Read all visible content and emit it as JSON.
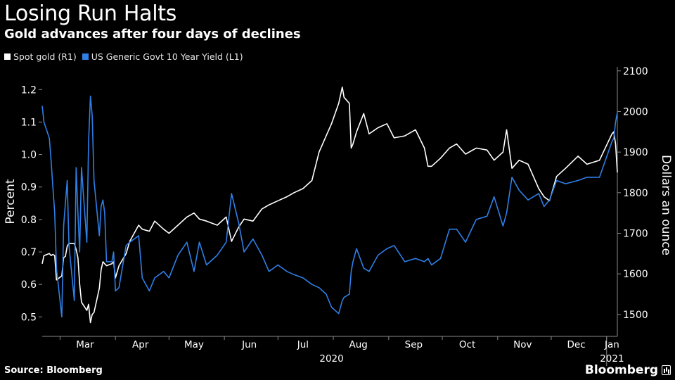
{
  "header": {
    "title": "Losing Run Halts",
    "subtitle": "Gold advances after four days of declines"
  },
  "footer": {
    "source": "Source: Bloomberg",
    "brand": "Bloomberg"
  },
  "colors": {
    "gold": "#ffffff",
    "yield": "#2f7fe6",
    "background": "#000000",
    "axis": "#8a8a8a"
  },
  "chart_data": {
    "type": "line",
    "title": "Losing Run Halts",
    "subtitle": "Gold advances after four days of declines",
    "legend_position": "top-left",
    "grid": false,
    "x_range": [
      "2020-02-20",
      "2021-01-07"
    ],
    "x_month_labels": [
      {
        "label": "Mar",
        "date": "2020-03-15"
      },
      {
        "label": "Apr",
        "date": "2020-04-15"
      },
      {
        "label": "May",
        "date": "2020-05-15"
      },
      {
        "label": "Jun",
        "date": "2020-06-15"
      },
      {
        "label": "Jul",
        "date": "2020-07-15"
      },
      {
        "label": "Aug",
        "date": "2020-08-15"
      },
      {
        "label": "Sep",
        "date": "2020-09-15"
      },
      {
        "label": "Oct",
        "date": "2020-10-15"
      },
      {
        "label": "Nov",
        "date": "2020-11-15"
      },
      {
        "label": "Dec",
        "date": "2020-12-15"
      },
      {
        "label": "Jan",
        "date": "2021-01-04"
      }
    ],
    "x_year_labels": [
      {
        "label": "2020",
        "date": "2020-07-31"
      },
      {
        "label": "2021",
        "date": "2021-01-04"
      }
    ],
    "year_divider_date": "2021-01-01",
    "left_axis": {
      "label": "Percent",
      "ticks": [
        "0.5",
        "0.6",
        "0.7",
        "0.8",
        "0.9",
        "1.0",
        "1.1",
        "1.2"
      ],
      "range": [
        0.44,
        1.27
      ]
    },
    "right_axis": {
      "label": "Dollars an ounce",
      "ticks": [
        "1500",
        "1600",
        "1700",
        "1800",
        "1900",
        "2000",
        "2100"
      ],
      "range": [
        1446,
        2110
      ]
    },
    "series": [
      {
        "name": "Spot gold (R1)",
        "axis": "right",
        "color": "#ffffff",
        "x": [
          "2020-02-20",
          "2020-02-21",
          "2020-02-24",
          "2020-02-25",
          "2020-02-26",
          "2020-02-27",
          "2020-02-28",
          "2020-03-02",
          "2020-03-03",
          "2020-03-04",
          "2020-03-05",
          "2020-03-06",
          "2020-03-09",
          "2020-03-10",
          "2020-03-11",
          "2020-03-12",
          "2020-03-13",
          "2020-03-16",
          "2020-03-17",
          "2020-03-18",
          "2020-03-19",
          "2020-03-20",
          "2020-03-23",
          "2020-03-24",
          "2020-03-25",
          "2020-03-26",
          "2020-03-27",
          "2020-03-30",
          "2020-03-31",
          "2020-04-01",
          "2020-04-03",
          "2020-04-07",
          "2020-04-09",
          "2020-04-14",
          "2020-04-16",
          "2020-04-20",
          "2020-04-23",
          "2020-04-28",
          "2020-05-01",
          "2020-05-06",
          "2020-05-11",
          "2020-05-15",
          "2020-05-18",
          "2020-05-22",
          "2020-05-28",
          "2020-06-02",
          "2020-06-05",
          "2020-06-09",
          "2020-06-12",
          "2020-06-17",
          "2020-06-22",
          "2020-06-26",
          "2020-07-01",
          "2020-07-06",
          "2020-07-10",
          "2020-07-15",
          "2020-07-20",
          "2020-07-24",
          "2020-07-28",
          "2020-07-31",
          "2020-08-04",
          "2020-08-06",
          "2020-08-07",
          "2020-08-10",
          "2020-08-11",
          "2020-08-12",
          "2020-08-14",
          "2020-08-18",
          "2020-08-21",
          "2020-08-26",
          "2020-08-31",
          "2020-09-04",
          "2020-09-10",
          "2020-09-16",
          "2020-09-21",
          "2020-09-23",
          "2020-09-25",
          "2020-09-30",
          "2020-10-05",
          "2020-10-09",
          "2020-10-14",
          "2020-10-20",
          "2020-10-26",
          "2020-10-30",
          "2020-11-04",
          "2020-11-06",
          "2020-11-09",
          "2020-11-13",
          "2020-11-18",
          "2020-11-24",
          "2020-11-27",
          "2020-11-30",
          "2020-12-04",
          "2020-12-09",
          "2020-12-16",
          "2020-12-21",
          "2020-12-28",
          "2021-01-04",
          "2021-01-05",
          "2021-01-06",
          "2021-01-07"
        ],
        "y": [
          1625,
          1645,
          1650,
          1645,
          1648,
          1645,
          1585,
          1595,
          1640,
          1643,
          1668,
          1675,
          1675,
          1660,
          1640,
          1575,
          1530,
          1510,
          1525,
          1480,
          1500,
          1505,
          1565,
          1610,
          1630,
          1625,
          1620,
          1625,
          1630,
          1590,
          1620,
          1650,
          1680,
          1720,
          1710,
          1705,
          1730,
          1710,
          1700,
          1720,
          1740,
          1750,
          1735,
          1730,
          1720,
          1740,
          1680,
          1715,
          1735,
          1730,
          1760,
          1770,
          1780,
          1790,
          1800,
          1810,
          1830,
          1900,
          1940,
          1970,
          2020,
          2060,
          2035,
          2020,
          1910,
          1920,
          1950,
          1995,
          1945,
          1960,
          1970,
          1935,
          1940,
          1955,
          1910,
          1865,
          1865,
          1885,
          1910,
          1920,
          1895,
          1910,
          1905,
          1880,
          1900,
          1955,
          1860,
          1880,
          1870,
          1810,
          1790,
          1780,
          1840,
          1860,
          1890,
          1870,
          1880,
          1945,
          1950,
          1920,
          1850
        ]
      },
      {
        "name": "US Generic Govt 10 Year Yield  (L1)",
        "axis": "left",
        "color": "#2f7fe6",
        "x": [
          "2020-02-20",
          "2020-02-21",
          "2020-02-24",
          "2020-02-25",
          "2020-02-26",
          "2020-02-27",
          "2020-02-28",
          "2020-03-02",
          "2020-03-03",
          "2020-03-04",
          "2020-03-05",
          "2020-03-06",
          "2020-03-09",
          "2020-03-10",
          "2020-03-11",
          "2020-03-12",
          "2020-03-13",
          "2020-03-16",
          "2020-03-17",
          "2020-03-18",
          "2020-03-19",
          "2020-03-20",
          "2020-03-23",
          "2020-03-24",
          "2020-03-25",
          "2020-03-26",
          "2020-03-27",
          "2020-03-30",
          "2020-03-31",
          "2020-04-01",
          "2020-04-03",
          "2020-04-07",
          "2020-04-09",
          "2020-04-14",
          "2020-04-16",
          "2020-04-20",
          "2020-04-23",
          "2020-04-28",
          "2020-05-01",
          "2020-05-06",
          "2020-05-11",
          "2020-05-15",
          "2020-05-18",
          "2020-05-22",
          "2020-05-28",
          "2020-06-02",
          "2020-06-05",
          "2020-06-09",
          "2020-06-12",
          "2020-06-17",
          "2020-06-22",
          "2020-06-26",
          "2020-07-01",
          "2020-07-06",
          "2020-07-10",
          "2020-07-15",
          "2020-07-20",
          "2020-07-24",
          "2020-07-28",
          "2020-07-31",
          "2020-08-04",
          "2020-08-06",
          "2020-08-07",
          "2020-08-10",
          "2020-08-11",
          "2020-08-12",
          "2020-08-14",
          "2020-08-18",
          "2020-08-21",
          "2020-08-26",
          "2020-08-31",
          "2020-09-04",
          "2020-09-10",
          "2020-09-16",
          "2020-09-21",
          "2020-09-23",
          "2020-09-25",
          "2020-09-30",
          "2020-10-05",
          "2020-10-09",
          "2020-10-14",
          "2020-10-20",
          "2020-10-26",
          "2020-10-30",
          "2020-11-04",
          "2020-11-06",
          "2020-11-09",
          "2020-11-13",
          "2020-11-18",
          "2020-11-24",
          "2020-11-27",
          "2020-11-30",
          "2020-12-04",
          "2020-12-09",
          "2020-12-16",
          "2020-12-21",
          "2020-12-28",
          "2021-01-04",
          "2021-01-05",
          "2021-01-06",
          "2021-01-07"
        ],
        "y": [
          1.15,
          1.1,
          1.05,
          0.98,
          0.9,
          0.82,
          0.65,
          0.5,
          0.78,
          0.85,
          0.92,
          0.72,
          0.55,
          0.96,
          0.82,
          0.7,
          0.96,
          0.73,
          1.04,
          1.18,
          1.12,
          0.92,
          0.75,
          0.84,
          0.86,
          0.82,
          0.67,
          0.67,
          0.7,
          0.58,
          0.59,
          0.72,
          0.73,
          0.75,
          0.62,
          0.58,
          0.62,
          0.64,
          0.62,
          0.69,
          0.73,
          0.64,
          0.73,
          0.66,
          0.69,
          0.73,
          0.88,
          0.79,
          0.7,
          0.74,
          0.69,
          0.64,
          0.66,
          0.64,
          0.63,
          0.62,
          0.6,
          0.59,
          0.57,
          0.53,
          0.51,
          0.55,
          0.56,
          0.57,
          0.64,
          0.67,
          0.71,
          0.65,
          0.64,
          0.69,
          0.71,
          0.72,
          0.67,
          0.68,
          0.67,
          0.68,
          0.66,
          0.68,
          0.77,
          0.77,
          0.73,
          0.8,
          0.81,
          0.87,
          0.78,
          0.82,
          0.93,
          0.89,
          0.86,
          0.88,
          0.84,
          0.86,
          0.92,
          0.91,
          0.92,
          0.93,
          0.93,
          1.04,
          1.05,
          1.1,
          1.13
        ]
      }
    ]
  }
}
